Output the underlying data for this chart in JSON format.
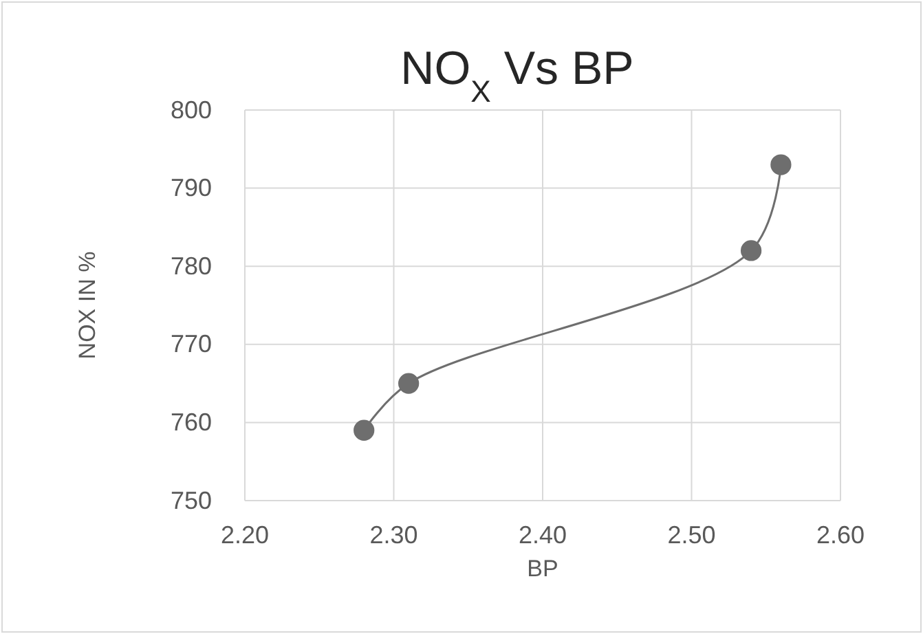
{
  "chart_data": {
    "type": "line",
    "title": "NO$_{X}$ Vs BP",
    "xlabel": "BP",
    "ylabel": "NOX IN %",
    "x": [
      2.28,
      2.31,
      2.54,
      2.56
    ],
    "series": [
      {
        "color": "#6e6e6e",
        "values": [
          759,
          765,
          782,
          793
        ]
      }
    ],
    "xlim": [
      2.2,
      2.6
    ],
    "xticks": [
      {
        "value": 2.2,
        "label": "2.20"
      },
      {
        "value": 2.3,
        "label": "2.30"
      },
      {
        "value": 2.4,
        "label": "2.40"
      },
      {
        "value": 2.5,
        "label": "2.50"
      },
      {
        "value": 2.6,
        "label": "2.60"
      }
    ],
    "ylim": [
      750,
      800
    ],
    "yticks": [
      750,
      760,
      770,
      780,
      790,
      800
    ],
    "grid": true,
    "marker": "circle",
    "line_style": "solid"
  }
}
